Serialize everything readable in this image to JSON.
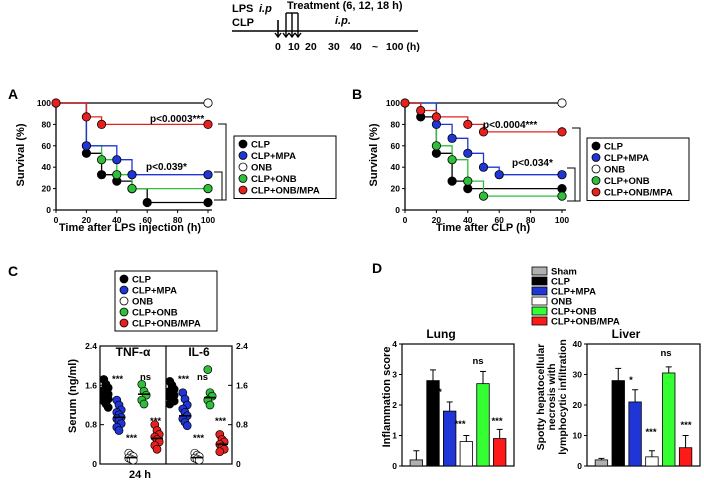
{
  "timeline": {
    "lps_ip": "LPS",
    "lps_ip_italic": "i.p",
    "clp": "CLP",
    "treatment": "Treatment (6, 12, 18 h)",
    "ip": "i.p.",
    "ticks": [
      "0",
      "10",
      "20",
      "30",
      "40",
      "~",
      "100 (h)"
    ]
  },
  "legend_groups": [
    "CLP",
    "CLP+MPA",
    "ONB",
    "CLP+ONB",
    "CLP+ONB/MPA"
  ],
  "legend_groups_D": [
    "Sham",
    "CLP",
    "CLP+MPA",
    "ONB",
    "CLP+ONB",
    "CLP+ONB/MPA"
  ],
  "colors": {
    "sham": "#b0b0b0",
    "clp": "#000000",
    "mpa": "#1f35d6",
    "onb": "#ffffff",
    "onb_combo": "#2fbf3a",
    "onb_mpa": "#e8201e",
    "bright_green": "#33ff33",
    "bright_red": "#ff1a1a"
  },
  "panels": {
    "A": {
      "letter": "A",
      "xlabel": "Time after LPS injection (h)",
      "ylabel": "Survival (%)",
      "p_top": "p<0.0003***",
      "p_bottom": "p<0.039*",
      "xticks": [
        "0",
        "20",
        "40",
        "60",
        "80",
        "100"
      ],
      "yticks": [
        "0",
        "20",
        "40",
        "60",
        "80",
        "100"
      ]
    },
    "B": {
      "letter": "B",
      "xlabel": "Time after CLP (h)",
      "ylabel": "Survival (%)",
      "p_top": "p<0.0004***",
      "p_bottom": "p<0.034*",
      "xticks": [
        "0",
        "20",
        "40",
        "60",
        "80",
        "100"
      ],
      "yticks": [
        "0",
        "20",
        "40",
        "60",
        "80",
        "100"
      ]
    },
    "C": {
      "letter": "C",
      "ylabel": "Serum (ng/ml)",
      "xlabel": "24 h",
      "tnf": "TNF-α",
      "il6": "IL-6",
      "yticks": [
        "0",
        "0.8",
        "1.6",
        "2.4"
      ],
      "sig": [
        "***",
        "ns",
        "***",
        "***",
        "ns",
        "***",
        "***",
        "***"
      ]
    },
    "D": {
      "letter": "D",
      "lung_title": "Lung",
      "liver_title": "Liver",
      "lung_ylabel": "Inflammation score",
      "liver_ylabel_1": "Spotty hepatocellular",
      "liver_ylabel_2": "necrosis with",
      "liver_ylabel_3": "lymphocytic infiltration",
      "lung_yticks": [
        "0",
        "1",
        "2",
        "3",
        "4"
      ],
      "liver_yticks": [
        "0",
        "10",
        "20",
        "30",
        "40"
      ],
      "lung_sig": [
        "*",
        "***",
        "ns",
        "***"
      ],
      "liver_sig": [
        "*",
        "***",
        "ns",
        "***"
      ]
    }
  },
  "chart_data": [
    {
      "type": "line",
      "panel": "A",
      "title": "",
      "xlabel": "Time after LPS injection (h)",
      "ylabel": "Survival (%)",
      "xlim": [
        0,
        100
      ],
      "ylim": [
        0,
        100
      ],
      "series": [
        {
          "name": "CLP",
          "x": [
            0,
            20,
            30,
            40,
            50,
            60,
            100
          ],
          "y": [
            100,
            53,
            33,
            27,
            20,
            7,
            7
          ]
        },
        {
          "name": "CLP+MPA",
          "x": [
            0,
            20,
            40,
            50,
            100
          ],
          "y": [
            100,
            60,
            47,
            33,
            33
          ]
        },
        {
          "name": "ONB",
          "x": [
            0,
            100
          ],
          "y": [
            100,
            100
          ]
        },
        {
          "name": "CLP+ONB",
          "x": [
            0,
            20,
            30,
            40,
            50,
            100
          ],
          "y": [
            100,
            60,
            47,
            33,
            20,
            20
          ]
        },
        {
          "name": "CLP+ONB/MPA",
          "x": [
            0,
            20,
            30,
            100
          ],
          "y": [
            100,
            87,
            80,
            80
          ]
        }
      ]
    },
    {
      "type": "line",
      "panel": "B",
      "title": "",
      "xlabel": "Time after CLP (h)",
      "ylabel": "Survival (%)",
      "xlim": [
        0,
        100
      ],
      "ylim": [
        0,
        100
      ],
      "series": [
        {
          "name": "CLP",
          "x": [
            0,
            10,
            20,
            30,
            40,
            100
          ],
          "y": [
            100,
            87,
            53,
            27,
            20,
            20
          ]
        },
        {
          "name": "CLP+MPA",
          "x": [
            0,
            20,
            30,
            40,
            50,
            60,
            100
          ],
          "y": [
            100,
            80,
            67,
            53,
            40,
            33,
            33
          ]
        },
        {
          "name": "ONB",
          "x": [
            0,
            100
          ],
          "y": [
            100,
            100
          ]
        },
        {
          "name": "CLP+ONB",
          "x": [
            0,
            20,
            30,
            40,
            50,
            100
          ],
          "y": [
            100,
            60,
            47,
            27,
            13,
            13
          ]
        },
        {
          "name": "CLP+ONB/MPA",
          "x": [
            0,
            10,
            20,
            40,
            50,
            100
          ],
          "y": [
            100,
            93,
            87,
            80,
            73,
            73
          ]
        }
      ]
    },
    {
      "type": "scatter",
      "panel": "C",
      "ylabel": "Serum (ng/ml)",
      "ylim": [
        0,
        2.4
      ],
      "subplots": [
        {
          "name": "TNF-α",
          "groups": [
            {
              "name": "CLP",
              "mean": 1.4,
              "values": [
                1.72,
                1.62,
                1.55,
                1.5,
                1.45,
                1.42,
                1.4,
                1.36,
                1.32,
                1.28,
                1.22,
                1.15
              ]
            },
            {
              "name": "CLP+MPA",
              "mean": 0.95,
              "values": [
                1.3,
                1.2,
                1.1,
                1.05,
                1.0,
                0.95,
                0.92,
                0.88,
                0.82,
                0.75,
                0.68
              ]
            },
            {
              "name": "ONB",
              "mean": 0.13,
              "values": [
                0.22,
                0.18,
                0.15,
                0.12,
                0.1,
                0.08
              ]
            },
            {
              "name": "CLP+ONB",
              "mean": 1.42,
              "values": [
                1.62,
                1.48,
                1.4,
                1.3,
                1.22
              ]
            },
            {
              "name": "CLP+ONB/MPA",
              "mean": 0.52,
              "values": [
                0.8,
                0.68,
                0.6,
                0.55,
                0.5,
                0.45,
                0.38,
                0.3
              ]
            }
          ]
        },
        {
          "name": "IL-6",
          "groups": [
            {
              "name": "CLP",
              "mean": 1.4,
              "values": [
                1.68,
                1.6,
                1.52,
                1.48,
                1.44,
                1.4,
                1.36,
                1.32,
                1.28,
                1.22
              ]
            },
            {
              "name": "CLP+MPA",
              "mean": 0.98,
              "values": [
                1.45,
                1.32,
                1.2,
                1.12,
                1.05,
                0.98,
                0.92,
                0.85,
                0.78
              ]
            },
            {
              "name": "ONB",
              "mean": 0.13,
              "values": [
                0.22,
                0.18,
                0.15,
                0.12,
                0.1,
                0.08
              ]
            },
            {
              "name": "CLP+ONB",
              "mean": 1.35,
              "values": [
                1.92,
                1.45,
                1.38,
                1.3,
                1.2
              ]
            },
            {
              "name": "CLP+ONB/MPA",
              "mean": 0.4,
              "values": [
                0.6,
                0.5,
                0.45,
                0.4,
                0.35,
                0.3,
                0.25
              ]
            }
          ]
        }
      ]
    },
    {
      "type": "bar",
      "panel": "D-Lung",
      "title": "Lung",
      "ylabel": "Inflammation score",
      "ylim": [
        0,
        4
      ],
      "categories": [
        "Sham",
        "CLP",
        "CLP+MPA",
        "ONB",
        "CLP+ONB",
        "CLP+ONB/MPA"
      ],
      "values": [
        0.2,
        2.8,
        1.8,
        0.8,
        2.7,
        0.9
      ],
      "errors": [
        0.3,
        0.35,
        0.3,
        0.2,
        0.4,
        0.3
      ]
    },
    {
      "type": "bar",
      "panel": "D-Liver",
      "title": "Liver",
      "ylabel": "Spotty hepatocellular necrosis with lymphocytic infiltration",
      "ylim": [
        0,
        40
      ],
      "categories": [
        "Sham",
        "CLP",
        "CLP+MPA",
        "ONB",
        "CLP+ONB",
        "CLP+ONB/MPA"
      ],
      "values": [
        2,
        28,
        21,
        3,
        30.5,
        6
      ],
      "errors": [
        0.5,
        4,
        4,
        2,
        2,
        4
      ]
    }
  ]
}
